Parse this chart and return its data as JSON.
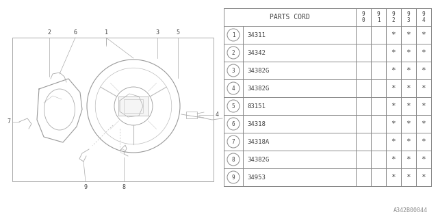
{
  "background_color": "#ffffff",
  "parts": [
    {
      "num": "1",
      "code": "34311"
    },
    {
      "num": "2",
      "code": "34342"
    },
    {
      "num": "3",
      "code": "34382G"
    },
    {
      "num": "4",
      "code": "34382G"
    },
    {
      "num": "5",
      "code": "83151"
    },
    {
      "num": "6",
      "code": "34318"
    },
    {
      "num": "7",
      "code": "34318A"
    },
    {
      "num": "8",
      "code": "34382G"
    },
    {
      "num": "9",
      "code": "34953"
    }
  ],
  "stars_cols": [
    2,
    3,
    4
  ],
  "diagram_label": "A342B00044",
  "line_color": "#aaaaaa",
  "table_line_color": "#888888",
  "text_color": "#444444"
}
